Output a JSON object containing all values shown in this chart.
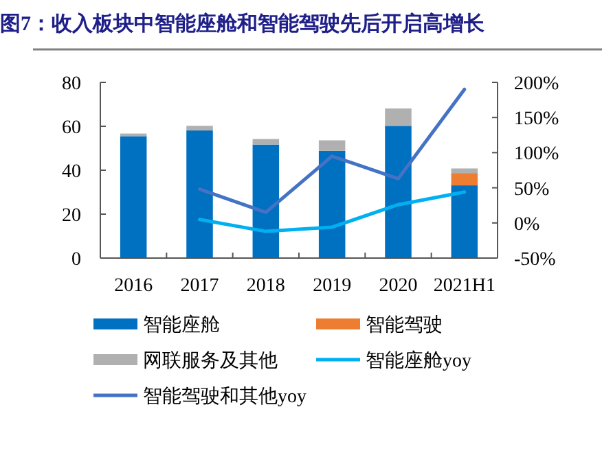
{
  "chart_data": {
    "type": "bar",
    "title": "图7：收入板块中智能座舱和智能驾驶先后开启高增长",
    "categories": [
      "2016",
      "2017",
      "2018",
      "2019",
      "2020",
      "2021H1"
    ],
    "stacked": true,
    "series": [
      {
        "name": "智能座舱",
        "color": "#0070c0",
        "values": [
          55.5,
          58.1,
          51.7,
          48.8,
          60.2,
          33.1
        ]
      },
      {
        "name": "智能驾驶",
        "color": "#ed7d31",
        "values": [
          0,
          0,
          0,
          0,
          0,
          5.6
        ]
      },
      {
        "name": "网联服务及其他",
        "color": "#b0b0b0",
        "values": [
          1.2,
          2.1,
          2.5,
          4.8,
          7.9,
          2.1
        ]
      },
      {
        "name": "智能座舱yoy",
        "type": "line",
        "axis": "y2",
        "color": "#00b0f0",
        "values": [
          null,
          5,
          -12,
          -6,
          26,
          44
        ]
      },
      {
        "name": "智能驾驶和其他yoy",
        "type": "line",
        "axis": "y2",
        "color": "#4472c4",
        "values": [
          null,
          48,
          15,
          95,
          63,
          190
        ]
      }
    ],
    "ylim": [
      0,
      80
    ],
    "yticks": [
      0,
      20,
      40,
      60,
      80
    ],
    "y2lim": [
      -50,
      200
    ],
    "y2ticks": [
      {
        "value": -50,
        "label": "-50%"
      },
      {
        "value": 0,
        "label": "0%"
      },
      {
        "value": 50,
        "label": "50%"
      },
      {
        "value": 100,
        "label": "100%"
      },
      {
        "value": 150,
        "label": "150%"
      },
      {
        "value": 200,
        "label": "200%"
      }
    ],
    "legend": "bottom",
    "grid": false
  }
}
